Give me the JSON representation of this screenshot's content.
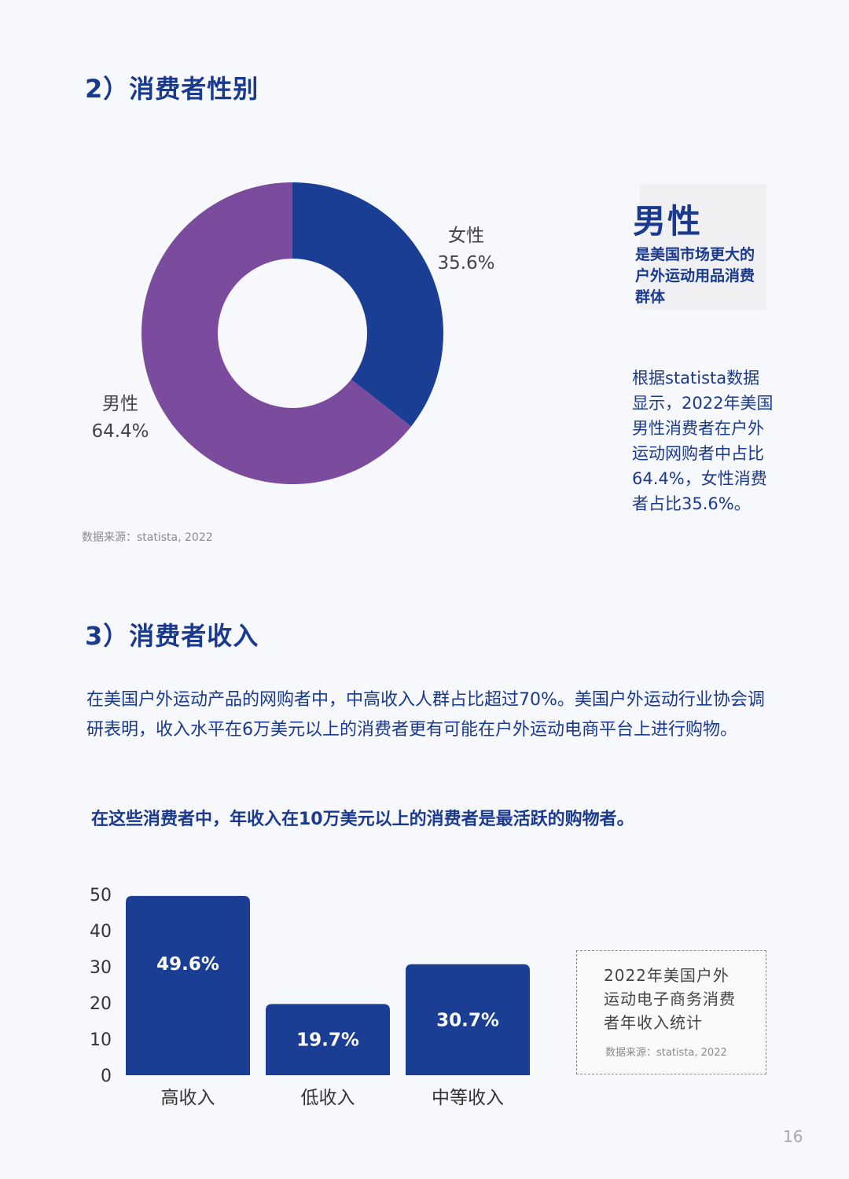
{
  "section2": {
    "title": "2）消费者性别",
    "source": "数据来源：statista, 2022",
    "highlight_big": "男性",
    "highlight_small": "是美国市场更大的户外运动用品消费群体",
    "description": "根据statista数据显示，2022年美国男性消费者在户外运动网购者中占比64.4%，女性消费者占比35.6%。"
  },
  "section3": {
    "title": "3）消费者收入",
    "paragraph": "在美国户外运动产品的网购者中，中高收入人群占比超过70%。美国户外运动行业协会调研表明，收入水平在6万美元以上的消费者更有可能在户外运动电商平台上进行购物。",
    "highlight": "在这些消费者中，年收入在10万美元以上的消费者是最活跃的购物者。",
    "note_title": "2022年美国户外运动电子商务消费者年收入统计",
    "note_source": "数据来源：statista, 2022"
  },
  "page_number": "16",
  "colors": {
    "navy": "#1a3a8f",
    "purple": "#7b4b9e",
    "text_blue": "#1a3a8f"
  },
  "chart_data": [
    {
      "type": "pie",
      "donut": true,
      "slices": [
        {
          "label": "女性",
          "value": 35.6,
          "display": "35.6%",
          "color": "#1a3e93"
        },
        {
          "label": "男性",
          "value": 64.4,
          "display": "64.4%",
          "color": "#7b4b9e"
        }
      ]
    },
    {
      "type": "bar",
      "categories": [
        "高收入",
        "低收入",
        "中等收入"
      ],
      "values": [
        49.6,
        19.7,
        30.7
      ],
      "data_labels": [
        "49.6%",
        "19.7%",
        "30.7%"
      ],
      "yticks": [
        "0",
        "10",
        "20",
        "30",
        "40",
        "50"
      ],
      "ylim": [
        0,
        50
      ],
      "color": "#1a3e93",
      "grid": false
    }
  ]
}
